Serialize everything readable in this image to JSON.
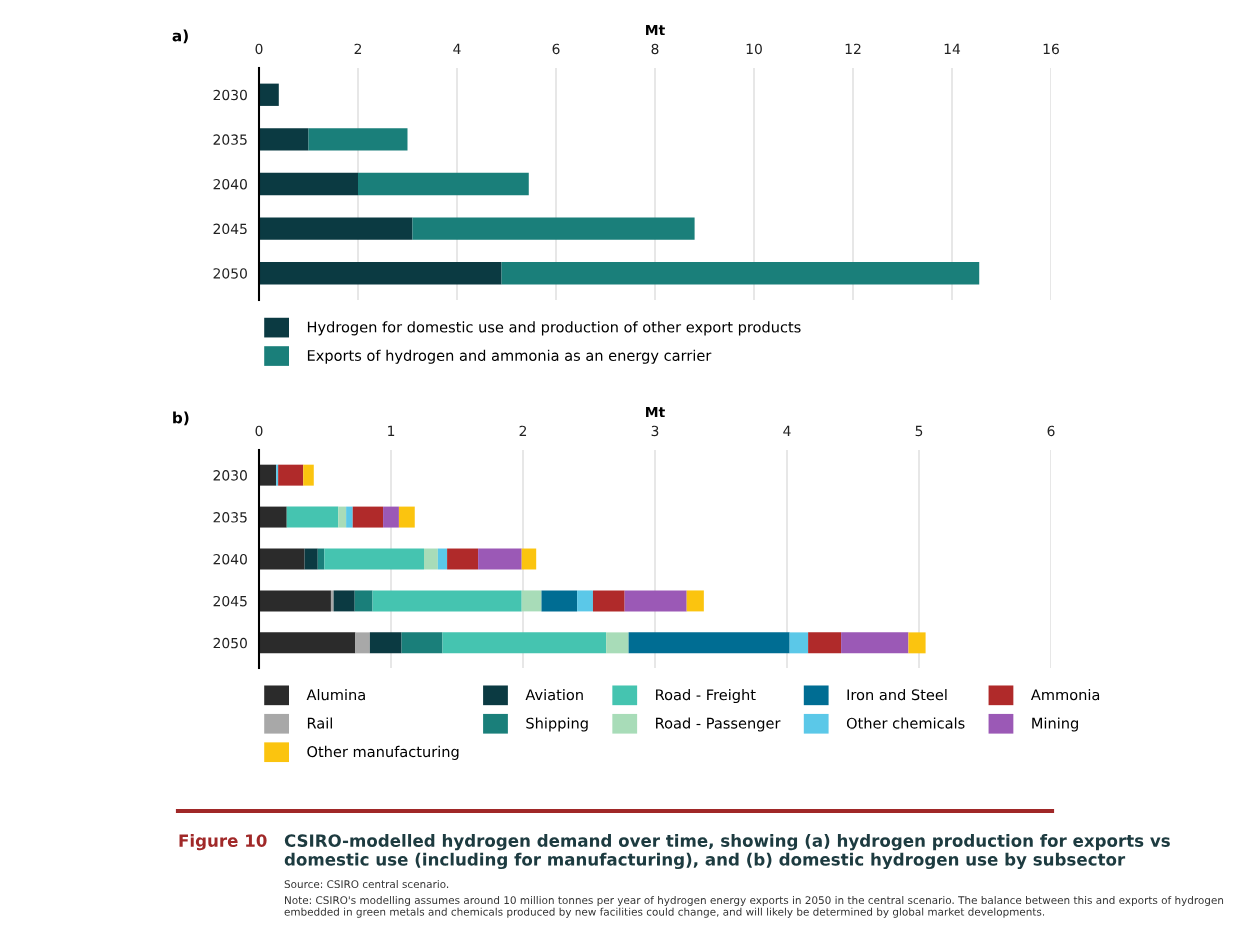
{
  "chart_data": [
    {
      "type": "bar",
      "title": "a)",
      "xlabel": "Mt",
      "orientation": "horizontal",
      "stacked": true,
      "categories": [
        "2030",
        "2035",
        "2040",
        "2045",
        "2050"
      ],
      "xlim": [
        0,
        16
      ],
      "xticks": [
        0,
        2,
        4,
        6,
        8,
        10,
        12,
        14,
        16
      ],
      "grid": "x",
      "legend": "bottom",
      "series": [
        {
          "name": "Hydrogen for domestic use and production of other export products",
          "color": "#0b3a42",
          "values": [
            0.4,
            1.0,
            2.0,
            3.1,
            4.9
          ]
        },
        {
          "name": "Exports of hydrogen and ammonia as an energy carrier",
          "color": "#1a7f7a",
          "values": [
            0,
            2.0,
            3.45,
            5.7,
            9.65
          ]
        }
      ]
    },
    {
      "type": "bar",
      "title": "b)",
      "xlabel": "Mt",
      "orientation": "horizontal",
      "stacked": true,
      "categories": [
        "2030",
        "2035",
        "2040",
        "2045",
        "2050"
      ],
      "xlim": [
        0,
        6
      ],
      "xticks": [
        0,
        1,
        2,
        3,
        4,
        5,
        6
      ],
      "grid": "x",
      "legend": "bottom",
      "series": [
        {
          "name": "Alumina",
          "color": "#2b2b2b",
          "values": [
            0.13,
            0.21,
            0.345,
            0.545,
            0.73
          ]
        },
        {
          "name": "Rail",
          "color": "#a8a8a8",
          "values": [
            0,
            0,
            0,
            0.02,
            0.11
          ]
        },
        {
          "name": "Aviation",
          "color": "#0b3a42",
          "values": [
            0,
            0,
            0.1,
            0.16,
            0.24
          ]
        },
        {
          "name": "Shipping",
          "color": "#1a7f7a",
          "values": [
            0,
            0,
            0.05,
            0.135,
            0.31
          ]
        },
        {
          "name": "Road - Freight",
          "color": "#45c4b0",
          "values": [
            0,
            0.39,
            0.755,
            1.13,
            1.24
          ]
        },
        {
          "name": "Road - Passenger",
          "color": "#a8dcb8",
          "values": [
            0,
            0.06,
            0.105,
            0.15,
            0.17
          ]
        },
        {
          "name": "Iron and Steel",
          "color": "#006d93",
          "values": [
            0,
            0,
            0,
            0.27,
            1.22
          ]
        },
        {
          "name": "Other chemicals",
          "color": "#5bc8e8",
          "values": [
            0.015,
            0.05,
            0.07,
            0.12,
            0.14
          ]
        },
        {
          "name": "Ammonia",
          "color": "#b02a2a",
          "values": [
            0.19,
            0.23,
            0.235,
            0.24,
            0.25
          ]
        },
        {
          "name": "Mining",
          "color": "#9b59b6",
          "values": [
            0,
            0.12,
            0.33,
            0.47,
            0.51
          ]
        },
        {
          "name": "Other manufacturing",
          "color": "#fbc40f",
          "values": [
            0.08,
            0.12,
            0.11,
            0.13,
            0.13
          ]
        }
      ],
      "annotations": [
        "Figure 10",
        "CSIRO-modelled hydrogen demand over time, showing (a) hydrogen production for exports vs domestic use (including for manufacturing), and (b) domestic hydrogen use by subsector",
        "Source: CSIRO central scenario.",
        "Note: CSIRO's modelling assumes around 10 million tonnes per year of hydrogen energy exports in 2050 in the central scenario. The balance between this and exports of hydrogen embedded in green metals and chemicals produced by new facilities could change, and will likely be determined by global market developments."
      ]
    }
  ]
}
